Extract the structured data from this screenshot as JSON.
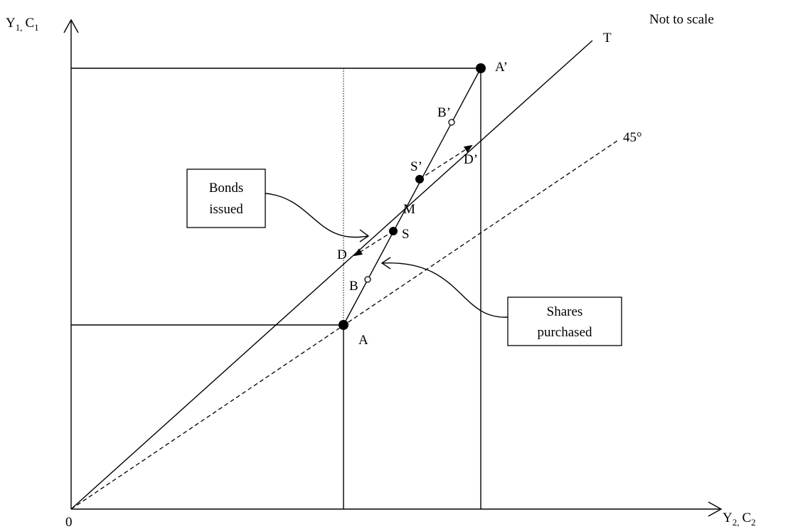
{
  "diagram": {
    "note": "Not to scale",
    "y_axis": {
      "main": "Y",
      "sub1": "1,",
      "mid": "C",
      "sub2": "1"
    },
    "x_axis": {
      "main": "Y",
      "sub1": "2,",
      "mid": "C",
      "sub2": "2"
    },
    "origin": "0",
    "lines": {
      "t": "T",
      "forty_five": "45°"
    },
    "points": {
      "a": "A",
      "a_prime": "A’",
      "b": "B",
      "b_prime": "B’",
      "s": "S",
      "s_prime": "S’",
      "d": "D",
      "d_prime": "D’",
      "m": "M"
    },
    "callouts": {
      "bonds": {
        "line1": "Bonds",
        "line2": "issued"
      },
      "shares": {
        "line1": "Shares",
        "line2": "purchased"
      }
    }
  }
}
